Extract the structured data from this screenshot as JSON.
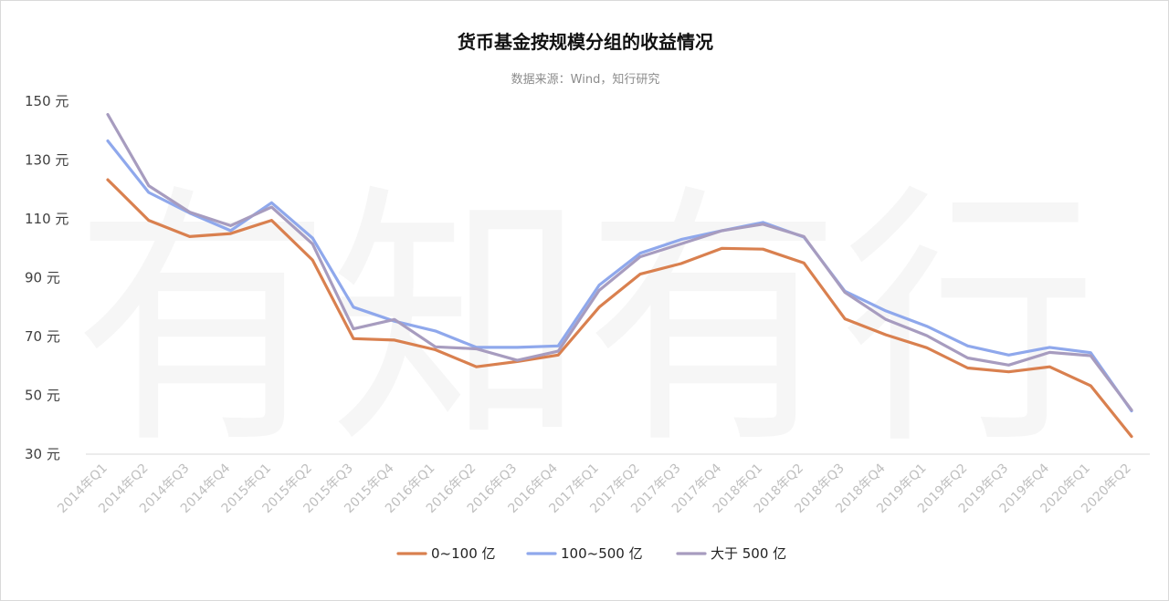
{
  "chart_data": {
    "type": "line",
    "title": "货币基金按规模分组的收益情况",
    "subtitle": "数据来源：Wind，知行研究",
    "watermark": "有知有行",
    "y_unit": "元",
    "ylim": [
      30,
      150
    ],
    "y_ticks": [
      30,
      50,
      70,
      90,
      110,
      130,
      150
    ],
    "grid": false,
    "legend_position": "bottom",
    "categories": [
      "2014年Q1",
      "2014年Q2",
      "2014年Q3",
      "2014年Q4",
      "2015年Q1",
      "2015年Q2",
      "2015年Q3",
      "2015年Q4",
      "2016年Q1",
      "2016年Q2",
      "2016年Q3",
      "2016年Q4",
      "2017年Q1",
      "2017年Q2",
      "2017年Q3",
      "2017年Q4",
      "2018年Q1",
      "2018年Q2",
      "2018年Q3",
      "2018年Q4",
      "2019年Q1",
      "2019年Q2",
      "2019年Q3",
      "2019年Q4",
      "2020年Q1",
      "2020年Q2"
    ],
    "series": [
      {
        "name": "0~100 亿",
        "color": "#d9804f",
        "values": [
          123.3,
          109.5,
          104.0,
          105.0,
          109.5,
          96.0,
          69.3,
          68.8,
          65.5,
          59.7,
          61.5,
          63.7,
          80.0,
          91.2,
          94.8,
          100.0,
          99.7,
          95.0,
          76.0,
          70.6,
          66.2,
          59.3,
          58.0,
          59.7,
          53.3,
          36.0
        ]
      },
      {
        "name": "100~500 亿",
        "color": "#8fa8ec",
        "values": [
          136.5,
          119.0,
          112.0,
          106.0,
          115.5,
          103.5,
          80.0,
          75.2,
          71.9,
          66.3,
          66.3,
          66.8,
          87.5,
          98.3,
          103.0,
          106.0,
          108.8,
          103.8,
          85.4,
          78.7,
          73.5,
          66.8,
          63.7,
          66.3,
          64.5,
          44.7
        ]
      },
      {
        "name": "大于 500 亿",
        "color": "#a79cbf",
        "values": [
          145.5,
          121.3,
          112.3,
          107.7,
          114.0,
          101.5,
          72.6,
          75.8,
          66.5,
          65.8,
          61.9,
          65.0,
          85.7,
          97.1,
          101.5,
          106.0,
          108.2,
          104.0,
          85.0,
          75.8,
          70.3,
          62.7,
          60.3,
          64.6,
          63.5,
          45.0
        ]
      }
    ]
  }
}
